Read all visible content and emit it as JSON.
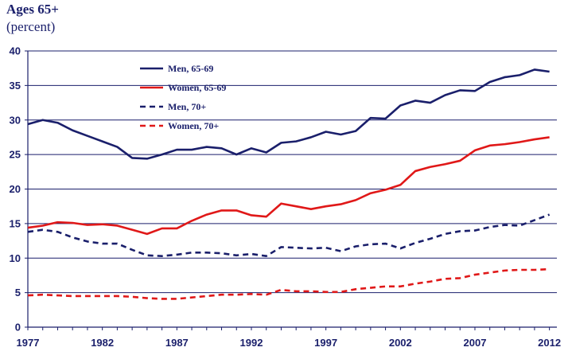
{
  "chart_data": {
    "type": "line",
    "title": "Ages 65+",
    "subtitle": "(percent)",
    "x": [
      1977,
      1978,
      1979,
      1980,
      1981,
      1982,
      1983,
      1984,
      1985,
      1986,
      1987,
      1988,
      1989,
      1990,
      1991,
      1992,
      1993,
      1994,
      1995,
      1996,
      1997,
      1998,
      1999,
      2000,
      2001,
      2002,
      2003,
      2004,
      2005,
      2006,
      2007,
      2008,
      2009,
      2010,
      2011,
      2012
    ],
    "x_tick_labels": [
      "1977",
      "1982",
      "1987",
      "1992",
      "1997",
      "2002",
      "2007",
      "2012"
    ],
    "x_ticks": [
      1977,
      1982,
      1987,
      1992,
      1997,
      2002,
      2007,
      2012
    ],
    "y_tick_labels": [
      "0",
      "5",
      "10",
      "15",
      "20",
      "25",
      "30",
      "35",
      "40"
    ],
    "ylim": [
      0,
      40
    ],
    "xlim": [
      1977,
      2012.5
    ],
    "grid": true,
    "legend_position": "top-center",
    "series": [
      {
        "name": "Men, 65-69",
        "color": "#1a1f6b",
        "dash": "solid",
        "values": [
          29.4,
          30.0,
          29.6,
          28.5,
          27.7,
          26.9,
          26.1,
          24.5,
          24.4,
          25.0,
          25.7,
          25.7,
          26.1,
          25.9,
          25.0,
          25.9,
          25.3,
          26.7,
          26.9,
          27.5,
          28.3,
          27.9,
          28.4,
          30.3,
          30.2,
          32.1,
          32.8,
          32.5,
          33.6,
          34.3,
          34.2,
          35.5,
          36.2,
          36.5,
          37.3,
          37.0
        ]
      },
      {
        "name": "Women, 65-69",
        "color": "#e01818",
        "dash": "solid",
        "values": [
          14.4,
          14.7,
          15.2,
          15.1,
          14.8,
          14.9,
          14.7,
          14.1,
          13.5,
          14.3,
          14.3,
          15.4,
          16.3,
          16.9,
          16.9,
          16.2,
          16.0,
          17.9,
          17.5,
          17.1,
          17.5,
          17.8,
          18.4,
          19.4,
          19.9,
          20.6,
          22.6,
          23.2,
          23.6,
          24.1,
          25.6,
          26.3,
          26.5,
          26.8,
          27.2,
          27.5
        ]
      },
      {
        "name": "Men, 70+",
        "color": "#1a1f6b",
        "dash": "dashed",
        "values": [
          13.8,
          14.1,
          13.8,
          13.0,
          12.4,
          12.1,
          12.1,
          11.2,
          10.4,
          10.3,
          10.5,
          10.8,
          10.8,
          10.7,
          10.4,
          10.6,
          10.3,
          11.6,
          11.5,
          11.4,
          11.5,
          11.0,
          11.7,
          12.0,
          12.1,
          11.4,
          12.2,
          12.8,
          13.5,
          13.9,
          14.0,
          14.5,
          14.8,
          14.7,
          15.5,
          16.3
        ]
      },
      {
        "name": "Women, 70+",
        "color": "#e01818",
        "dash": "dashed",
        "values": [
          4.6,
          4.7,
          4.6,
          4.5,
          4.5,
          4.5,
          4.5,
          4.4,
          4.2,
          4.1,
          4.1,
          4.3,
          4.5,
          4.7,
          4.7,
          4.8,
          4.7,
          5.4,
          5.2,
          5.2,
          5.1,
          5.1,
          5.5,
          5.7,
          5.9,
          5.9,
          6.3,
          6.6,
          7.0,
          7.1,
          7.6,
          7.9,
          8.2,
          8.3,
          8.3,
          8.4
        ]
      }
    ]
  }
}
